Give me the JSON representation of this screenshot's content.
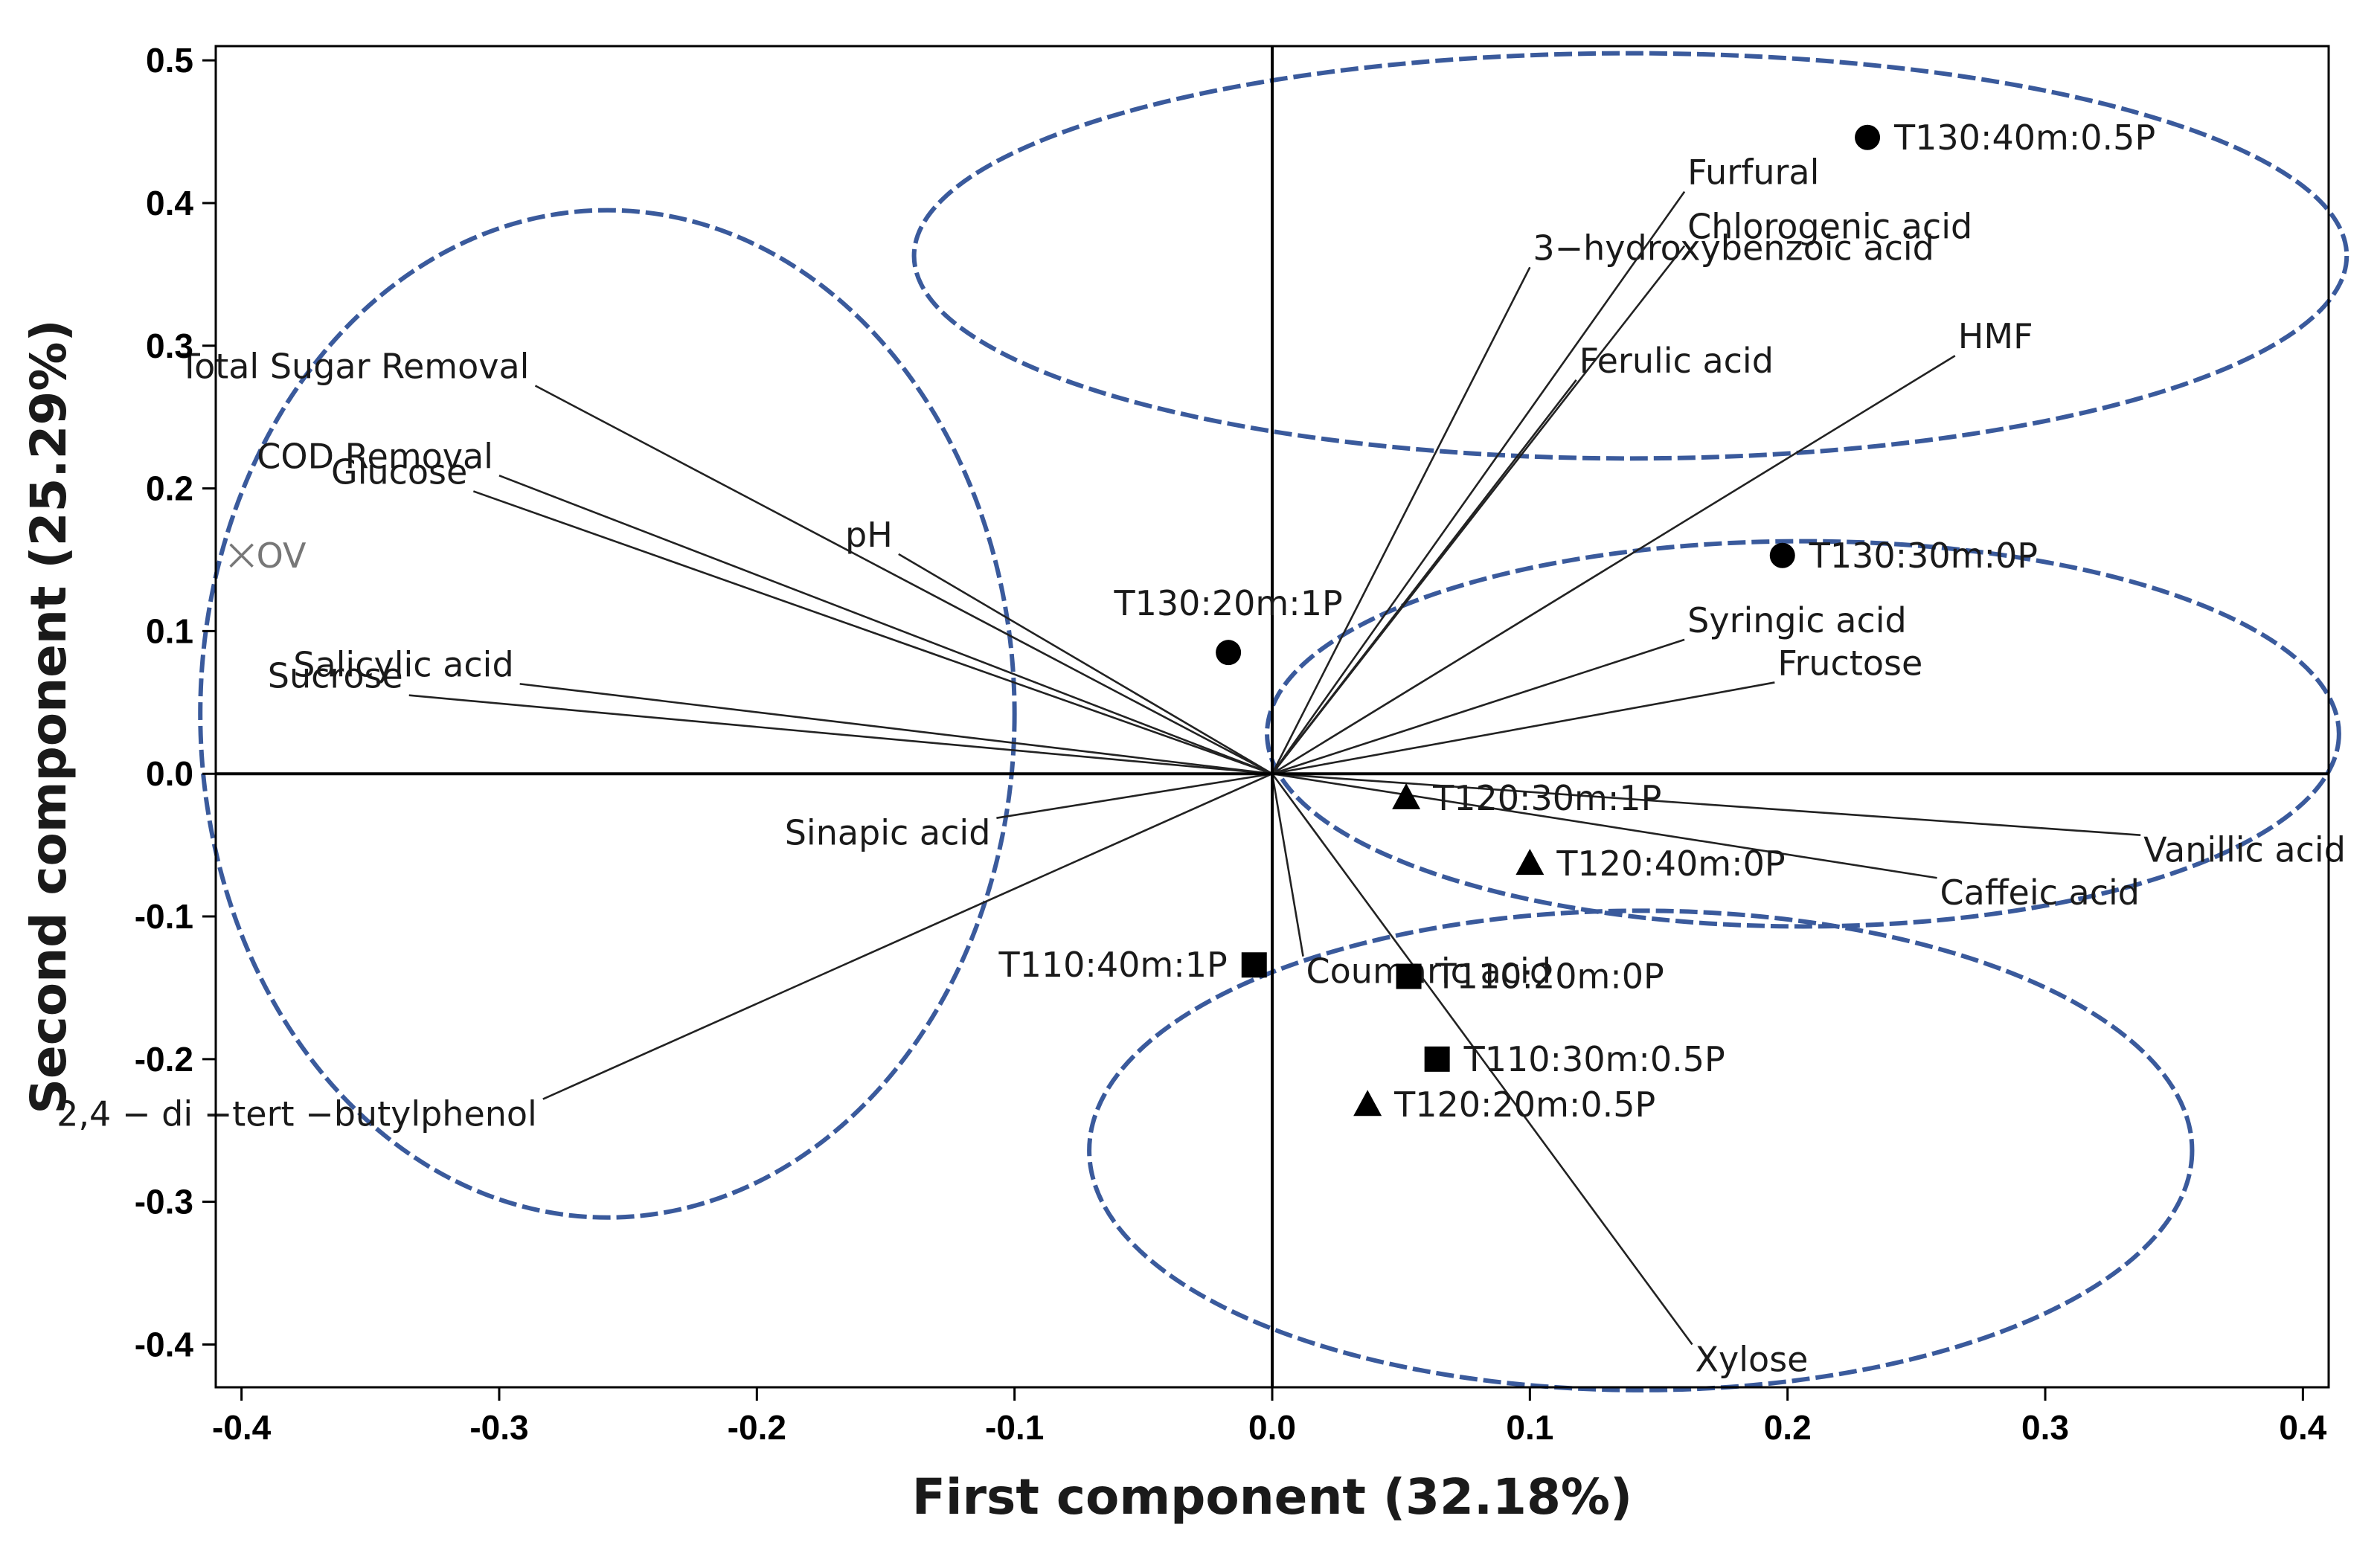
{
  "chart_data": {
    "type": "scatter",
    "subtype": "biplot",
    "xlabel": "First component (32.18%)",
    "ylabel": "Second component (25.29%)",
    "xlim": [
      -0.41,
      0.41
    ],
    "ylim": [
      -0.43,
      0.51
    ],
    "xticks": [
      "-0.4",
      "-0.3",
      "-0.2",
      "-0.1",
      "0.0",
      "0.1",
      "0.2",
      "0.3",
      "0.4"
    ],
    "xtick_values": [
      -0.4,
      -0.3,
      -0.2,
      -0.1,
      0.0,
      0.1,
      0.2,
      0.3,
      0.4
    ],
    "yticks": [
      "-0.4",
      "-0.3",
      "-0.2",
      "-0.1",
      "0.0",
      "0.1",
      "0.2",
      "0.3",
      "0.4",
      "0.5"
    ],
    "ytick_values": [
      -0.4,
      -0.3,
      -0.2,
      -0.1,
      0.0,
      0.1,
      0.2,
      0.3,
      0.4,
      0.5
    ],
    "grid": false,
    "reference_lines": {
      "x": 0,
      "y": 0
    },
    "loading_vectors": [
      {
        "label": "Total Sugar Removal",
        "x": -0.286,
        "y": 0.272
      },
      {
        "label": "COD Removal",
        "x": -0.3,
        "y": 0.209
      },
      {
        "label": "Glucose",
        "x": -0.31,
        "y": 0.198
      },
      {
        "label": "pH",
        "x": -0.145,
        "y": 0.154
      },
      {
        "label": "Salicylic acid",
        "x": -0.292,
        "y": 0.063
      },
      {
        "label": "Sucrose",
        "x": -0.335,
        "y": 0.055
      },
      {
        "label": "Sinapic acid",
        "x": -0.107,
        "y": -0.031
      },
      {
        "label": "2,4 − di −tert −butylphenol",
        "x": -0.283,
        "y": -0.228
      },
      {
        "label": "3−hydroxybenzoic acid",
        "x": 0.1,
        "y": 0.355
      },
      {
        "label": "Furfural",
        "x": 0.16,
        "y": 0.408
      },
      {
        "label": "Chlorogenic acid",
        "x": 0.16,
        "y": 0.37
      },
      {
        "label": "Ferulic acid",
        "x": 0.118,
        "y": 0.276
      },
      {
        "label": "HMF",
        "x": 0.265,
        "y": 0.293
      },
      {
        "label": "Syringic acid",
        "x": 0.16,
        "y": 0.094
      },
      {
        "label": "Fructose",
        "x": 0.195,
        "y": 0.064
      },
      {
        "label": "Vanillic acid",
        "x": 0.337,
        "y": -0.043
      },
      {
        "label": "Caffeic acid",
        "x": 0.258,
        "y": -0.073
      },
      {
        "label": "Coumaric acid",
        "x": 0.012,
        "y": -0.128
      },
      {
        "label": "Xylose",
        "x": 0.163,
        "y": -0.4
      }
    ],
    "points": [
      {
        "label": "T130:40m:0.5P",
        "x": 0.231,
        "y": 0.446,
        "marker": "circle"
      },
      {
        "label": "T130:30m:0P",
        "x": 0.198,
        "y": 0.153,
        "marker": "circle"
      },
      {
        "label": "T130:20m:1P",
        "x": -0.017,
        "y": 0.085,
        "marker": "circle"
      },
      {
        "label": "T120:30m:1P",
        "x": 0.052,
        "y": -0.017,
        "marker": "triangle"
      },
      {
        "label": "T120:40m:0P",
        "x": 0.1,
        "y": -0.063,
        "marker": "triangle"
      },
      {
        "label": "T120:20m:0.5P",
        "x": 0.037,
        "y": -0.232,
        "marker": "triangle"
      },
      {
        "label": "T110:40m:1P",
        "x": -0.007,
        "y": -0.134,
        "marker": "square"
      },
      {
        "label": "T110:20m:0P",
        "x": 0.053,
        "y": -0.142,
        "marker": "square"
      },
      {
        "label": "T110:30m:0.5P",
        "x": 0.064,
        "y": -0.2,
        "marker": "square"
      }
    ],
    "outlier": {
      "label": "OV",
      "x": -0.4,
      "y": 0.153,
      "marker": "x"
    },
    "ellipses": [
      {
        "group": "left",
        "cx": -0.258,
        "cy": 0.042,
        "rx": 0.158,
        "ry": 0.353
      },
      {
        "group": "top",
        "cx": 0.139,
        "cy": 0.363,
        "rx": 0.278,
        "ry": 0.142
      },
      {
        "group": "middle-right",
        "cx": 0.206,
        "cy": 0.028,
        "rx": 0.208,
        "ry": 0.135
      },
      {
        "group": "bottom",
        "cx": 0.143,
        "cy": -0.264,
        "rx": 0.214,
        "ry": 0.168
      }
    ],
    "colors": {
      "ellipse": "#3a5a9c",
      "vector": "#222222",
      "marker": "#000000",
      "outlier": "#777777"
    }
  }
}
